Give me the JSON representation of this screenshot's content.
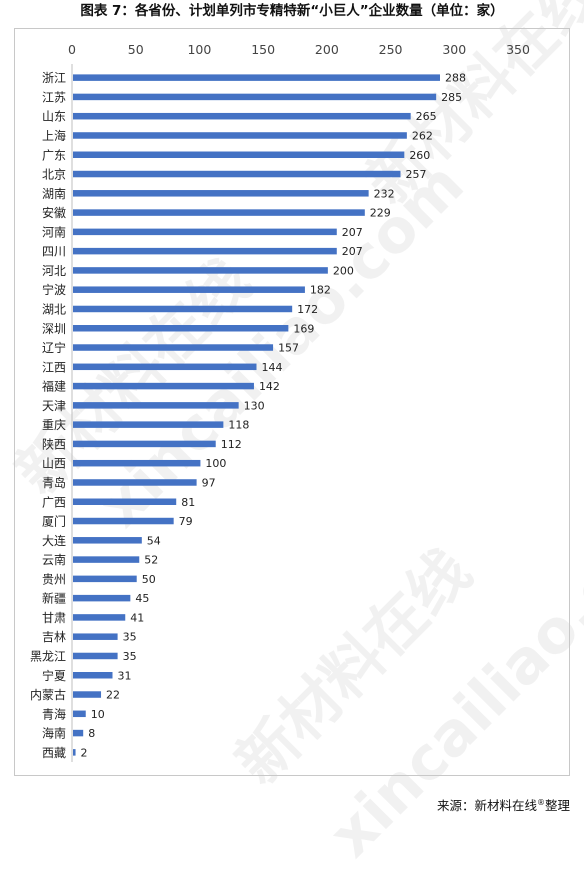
{
  "title": "图表 7：各省份、计划单列市专精特新“小巨人”企业数量（单位：家）",
  "source": {
    "prefix": "来源：",
    "org": "新材料在线",
    "reg": "®",
    "suffix": "整理"
  },
  "watermark": {
    "cn": "新材料在线",
    "en": "xincailiao.com"
  },
  "chart_data": {
    "type": "bar",
    "orientation": "horizontal",
    "title": "图表 7：各省份、计划单列市专精特新“小巨人”企业数量（单位：家）",
    "xlim": [
      0,
      350
    ],
    "xticks": [
      0,
      50,
      100,
      150,
      200,
      250,
      300,
      350
    ],
    "x_axis_position": "top",
    "grid": false,
    "bar_color": "#4472C4",
    "categories": [
      "浙江",
      "江苏",
      "山东",
      "上海",
      "广东",
      "北京",
      "湖南",
      "安徽",
      "河南",
      "四川",
      "河北",
      "宁波",
      "湖北",
      "深圳",
      "辽宁",
      "江西",
      "福建",
      "天津",
      "重庆",
      "陕西",
      "山西",
      "青岛",
      "广西",
      "厦门",
      "大连",
      "云南",
      "贵州",
      "新疆",
      "甘肃",
      "吉林",
      "黑龙江",
      "宁夏",
      "内蒙古",
      "青海",
      "海南",
      "西藏"
    ],
    "values": [
      288,
      285,
      265,
      262,
      260,
      257,
      232,
      229,
      207,
      207,
      200,
      182,
      172,
      169,
      157,
      144,
      142,
      130,
      118,
      112,
      100,
      97,
      81,
      79,
      54,
      52,
      50,
      45,
      41,
      35,
      35,
      31,
      22,
      10,
      8,
      2
    ]
  }
}
